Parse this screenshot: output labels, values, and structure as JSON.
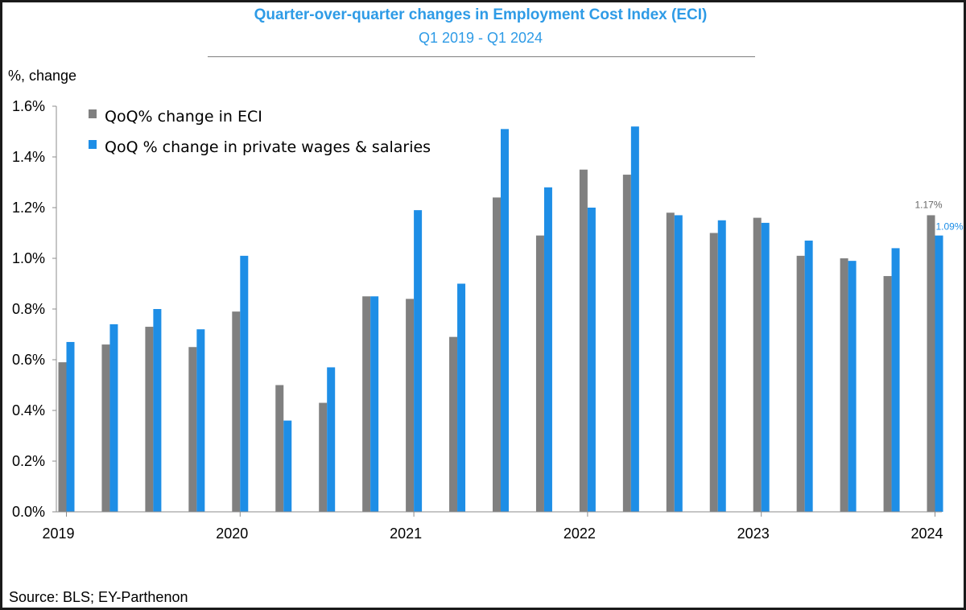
{
  "chart_data": {
    "type": "bar",
    "title": "Quarter-over-quarter changes in Employment Cost Index (ECI)",
    "subtitle": "Q1 2019 - Q1 2024",
    "ylabel": "%, change",
    "ylim": [
      0,
      1.6
    ],
    "y_ticks": [
      "0.0%",
      "0.2%",
      "0.4%",
      "0.6%",
      "0.8%",
      "1.0%",
      "1.2%",
      "1.4%",
      "1.6%"
    ],
    "x_tick_labels": [
      {
        "label": "2019",
        "index": 0
      },
      {
        "label": "2020",
        "index": 4
      },
      {
        "label": "2021",
        "index": 8
      },
      {
        "label": "2022",
        "index": 12
      },
      {
        "label": "2023",
        "index": 16
      },
      {
        "label": "2024",
        "index": 20
      }
    ],
    "categories": [
      "Q1 2019",
      "Q2 2019",
      "Q3 2019",
      "Q4 2019",
      "Q1 2020",
      "Q2 2020",
      "Q3 2020",
      "Q4 2020",
      "Q1 2021",
      "Q2 2021",
      "Q3 2021",
      "Q4 2021",
      "Q1 2022",
      "Q2 2022",
      "Q3 2022",
      "Q4 2022",
      "Q1 2023",
      "Q2 2023",
      "Q3 2023",
      "Q4 2023",
      "Q1 2024"
    ],
    "series": [
      {
        "name": "QoQ% change in ECI",
        "color": "#808080",
        "values": [
          0.59,
          0.66,
          0.73,
          0.65,
          0.79,
          0.5,
          0.43,
          0.85,
          0.84,
          0.69,
          1.24,
          1.09,
          1.35,
          1.33,
          1.18,
          1.1,
          1.16,
          1.01,
          1.0,
          0.93,
          1.17
        ]
      },
      {
        "name": "QoQ % change in private wages & salaries",
        "color": "#1e8ee6",
        "values": [
          0.67,
          0.74,
          0.8,
          0.72,
          1.01,
          0.36,
          0.57,
          0.85,
          1.19,
          0.9,
          1.51,
          1.28,
          1.2,
          1.52,
          1.17,
          1.15,
          1.14,
          1.07,
          0.99,
          1.04,
          1.09
        ]
      }
    ],
    "data_labels": [
      {
        "series": 0,
        "index": 20,
        "text": "1.17%"
      },
      {
        "series": 1,
        "index": 20,
        "text": "1.09%"
      }
    ],
    "legend": "top-left",
    "grid": false,
    "source": "Source: BLS; EY-Parthenon"
  }
}
